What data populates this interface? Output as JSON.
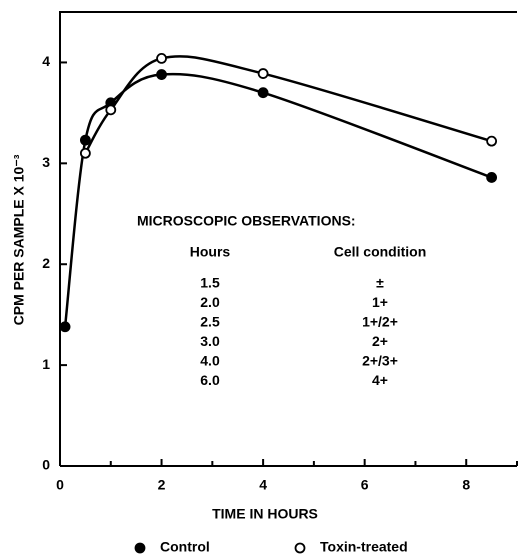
{
  "chart_data": {
    "type": "line",
    "xlabel": "TIME IN HOURS",
    "ylabel": "CPM PER SAMPLE X 10⁻³",
    "xlim": [
      0,
      9
    ],
    "xticks": [
      0,
      2,
      4,
      6,
      8
    ],
    "xminorticks": [
      1,
      3,
      5,
      7,
      9
    ],
    "ylim": [
      0,
      4.5
    ],
    "yticks": [
      0,
      1,
      2,
      3,
      4
    ],
    "series": [
      {
        "name": "Control",
        "color": "#000000",
        "marker": "filled",
        "x": [
          0.1,
          0.5,
          1,
          2,
          4,
          8.5
        ],
        "values": [
          1.38,
          3.23,
          3.6,
          3.88,
          3.7,
          2.86
        ]
      },
      {
        "name": "Toxin-treated",
        "color": "#000000",
        "marker": "open",
        "x": [
          0.5,
          1,
          2,
          4,
          8.5
        ],
        "values": [
          3.1,
          3.53,
          4.04,
          3.89,
          3.22
        ]
      }
    ]
  },
  "observations": {
    "title": "MICROSCOPIC OBSERVATIONS:",
    "columns": [
      "Hours",
      "Cell condition"
    ],
    "rows": [
      [
        "1.5",
        "±"
      ],
      [
        "2.0",
        "1+"
      ],
      [
        "2.5",
        "1+/2+"
      ],
      [
        "3.0",
        "2+"
      ],
      [
        "4.0",
        "2+/3+"
      ],
      [
        "6.0",
        "4+"
      ]
    ]
  }
}
